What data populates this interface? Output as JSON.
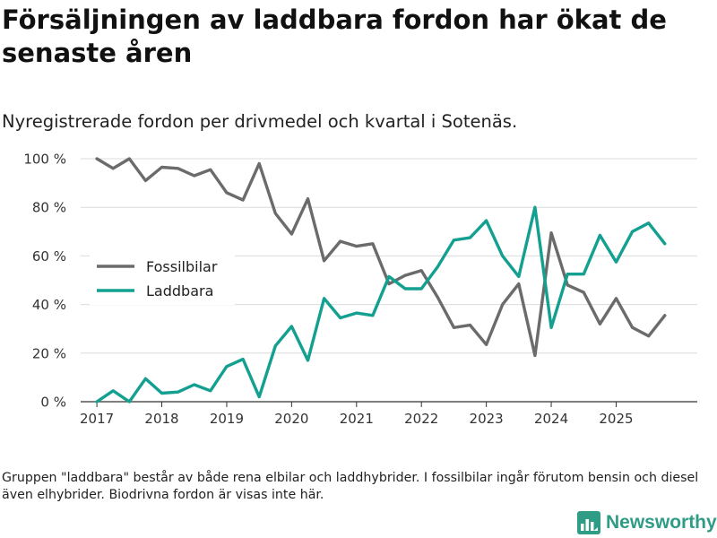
{
  "title": "Försäljningen av laddbara fordon har ökat de senaste åren",
  "subtitle": "Nyregistrerade fordon per drivmedel och kvartal i Sotenäs.",
  "footnote": "Gruppen \"laddbara\" består av både rena elbilar och laddhybrider. I fossilbilar ingår förutom bensin och diesel även elhybrider. Biodrivna fordon är visas inte här.",
  "brand": {
    "name": "Newsworthy",
    "icon": "newsworthy-logo-icon",
    "color": "#2f9c86"
  },
  "chart_data": {
    "type": "line",
    "title": "Försäljningen av laddbara fordon har ökat de senaste åren",
    "subtitle": "Nyregistrerade fordon per drivmedel och kvartal i Sotenäs.",
    "xlabel": "",
    "ylabel": "",
    "xlim": [
      2016.75,
      2026.25
    ],
    "ylim": [
      0,
      100
    ],
    "y_ticks": [
      0,
      20,
      40,
      60,
      80,
      100
    ],
    "y_tick_labels": [
      "0 %",
      "20 %",
      "40 %",
      "60 %",
      "80 %",
      "100 %"
    ],
    "x_ticks": [
      2017,
      2018,
      2019,
      2020,
      2021,
      2022,
      2023,
      2024,
      2025
    ],
    "x_tick_labels": [
      "2017",
      "2018",
      "2019",
      "2020",
      "2021",
      "2022",
      "2023",
      "2024",
      "2025"
    ],
    "grid": "horizontal",
    "legend_position": "middle-left",
    "x": [
      2017.0,
      2017.25,
      2017.5,
      2017.75,
      2018.0,
      2018.25,
      2018.5,
      2018.75,
      2019.0,
      2019.25,
      2019.5,
      2019.75,
      2020.0,
      2020.25,
      2020.5,
      2020.75,
      2021.0,
      2021.25,
      2021.5,
      2021.75,
      2022.0,
      2022.25,
      2022.5,
      2022.75,
      2023.0,
      2023.25,
      2023.5,
      2023.75,
      2024.0,
      2024.25,
      2024.5,
      2024.75,
      2025.0,
      2025.25,
      2025.5,
      2025.75
    ],
    "series": [
      {
        "name": "Fossilbilar",
        "color": "#6b6b6b",
        "values": [
          100,
          96,
          100,
          91,
          96.5,
          96,
          93,
          95.5,
          86,
          83,
          98,
          77.5,
          69,
          83.5,
          58,
          66,
          64,
          65,
          48.5,
          52,
          54,
          43,
          30.5,
          31.5,
          23.5,
          40,
          48.5,
          19,
          69.5,
          48,
          45,
          32,
          42.5,
          30.5,
          27,
          35.5
        ]
      },
      {
        "name": "Laddbara",
        "color": "#13a090",
        "values": [
          0,
          4.5,
          0,
          9.5,
          3.5,
          4,
          7,
          4.5,
          14.5,
          17.5,
          2,
          23,
          31,
          17,
          42.5,
          34.5,
          36.5,
          35.5,
          51.5,
          46.5,
          46.5,
          55.5,
          66.5,
          67.5,
          74.5,
          60,
          51.5,
          80,
          30.5,
          52.5,
          52.5,
          68.5,
          57.5,
          70,
          73.5,
          65
        ]
      }
    ]
  }
}
